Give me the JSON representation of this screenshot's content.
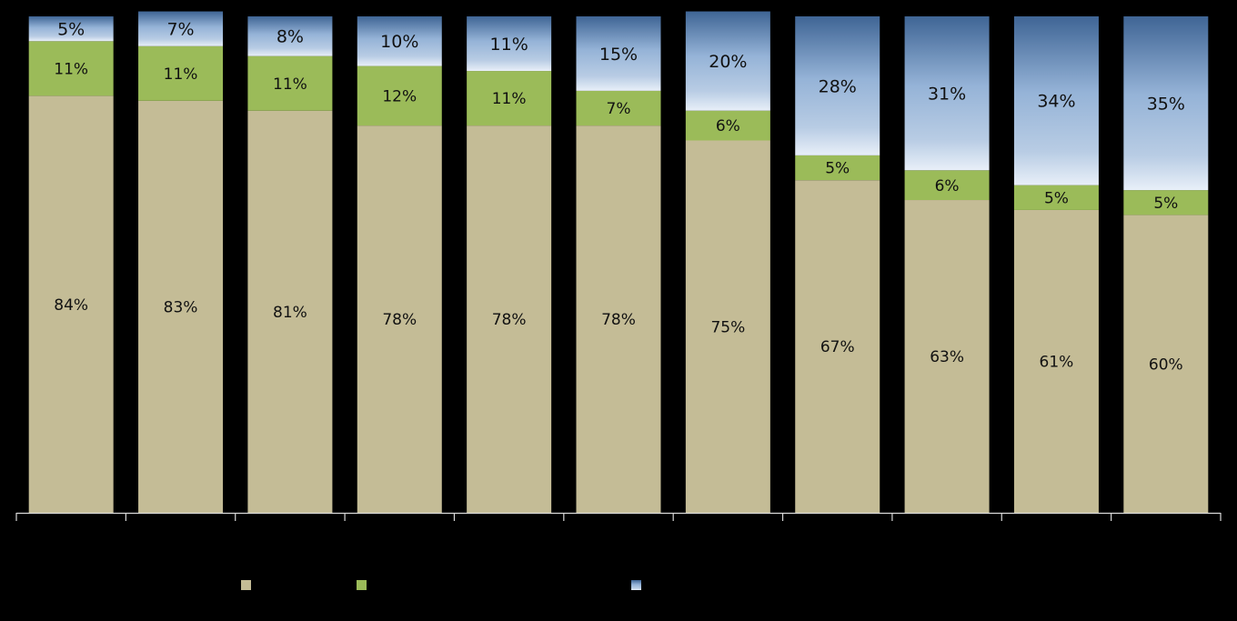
{
  "chart_data": {
    "type": "bar",
    "stacked": true,
    "normalized_percent": true,
    "title": "",
    "xlabel": "",
    "ylabel": "",
    "ylim": [
      0,
      100
    ],
    "categories": [
      "",
      "",
      "",
      "",
      "",
      "",
      "",
      "",
      "",
      "",
      ""
    ],
    "legend_position": "bottom",
    "grid": false,
    "series": [
      {
        "color": "#c4bc96",
        "values": [
          84,
          83,
          81,
          78,
          78,
          78,
          75,
          67,
          63,
          61,
          60
        ],
        "labels": [
          "84%",
          "83%",
          "81%",
          "78%",
          "78%",
          "78%",
          "75%",
          "67%",
          "63%",
          "61%",
          "60%"
        ]
      },
      {
        "color": "#9bbb59",
        "values": [
          11,
          11,
          11,
          12,
          11,
          7,
          6,
          5,
          6,
          5,
          5
        ],
        "labels": [
          "11%",
          "11%",
          "11%",
          "12%",
          "11%",
          "7%",
          "6%",
          "5%",
          "6%",
          "5%",
          "5%"
        ]
      },
      {
        "color": "#b8cce4",
        "values": [
          5,
          7,
          8,
          10,
          11,
          15,
          20,
          28,
          31,
          34,
          35
        ],
        "labels": [
          "5%",
          "7%",
          "8%",
          "10%",
          "11%",
          "15%",
          "20%",
          "28%",
          "31%",
          "34%",
          "35%"
        ]
      }
    ]
  }
}
